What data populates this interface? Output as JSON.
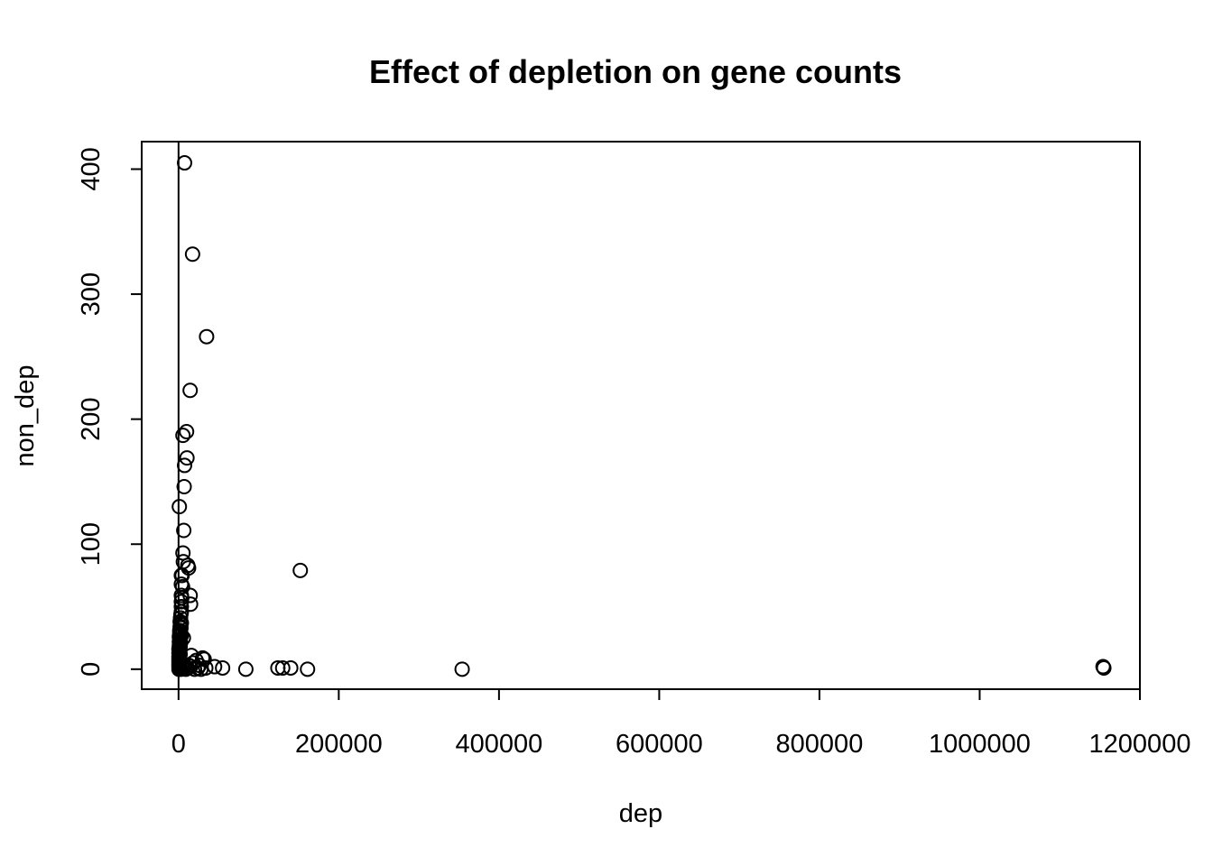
{
  "chart_data": {
    "type": "scatter",
    "title": "Effect of depletion on gene counts",
    "xlabel": "dep",
    "ylabel": "non_dep",
    "xlim": [
      -46000,
      1200000
    ],
    "ylim": [
      -16,
      422
    ],
    "x_ticks": [
      0,
      200000,
      400000,
      600000,
      800000,
      1000000,
      1200000
    ],
    "x_tick_labels": [
      "0",
      "200000",
      "400000",
      "600000",
      "800000",
      "1000000",
      "1200000"
    ],
    "y_ticks": [
      0,
      100,
      200,
      300,
      400
    ],
    "y_tick_labels": [
      "0",
      "100",
      "200",
      "300",
      "400"
    ],
    "reference_line": {
      "orientation": "vertical",
      "x": 0
    },
    "grid": false,
    "legend": "none",
    "points": [
      [
        7500,
        405
      ],
      [
        17500,
        332
      ],
      [
        35000,
        266
      ],
      [
        14500,
        223
      ],
      [
        10000,
        190
      ],
      [
        5500,
        187
      ],
      [
        10500,
        169
      ],
      [
        7500,
        163
      ],
      [
        7000,
        146
      ],
      [
        1000,
        130
      ],
      [
        6500,
        111
      ],
      [
        5500,
        93
      ],
      [
        6000,
        86
      ],
      [
        11500,
        83
      ],
      [
        12500,
        81
      ],
      [
        4500,
        75
      ],
      [
        3500,
        75
      ],
      [
        3500,
        68
      ],
      [
        5000,
        66
      ],
      [
        14500,
        59
      ],
      [
        3500,
        59
      ],
      [
        4000,
        57
      ],
      [
        3500,
        54
      ],
      [
        15000,
        52
      ],
      [
        3500,
        50
      ],
      [
        3500,
        46
      ],
      [
        3000,
        44
      ],
      [
        2500,
        41
      ],
      [
        2000,
        38
      ],
      [
        3500,
        37
      ],
      [
        2500,
        36
      ],
      [
        2000,
        34
      ],
      [
        3000,
        33
      ],
      [
        1500,
        31
      ],
      [
        2500,
        30
      ],
      [
        1500,
        29
      ],
      [
        2000,
        28
      ],
      [
        3500,
        27
      ],
      [
        1000,
        26
      ],
      [
        6000,
        25
      ],
      [
        1500,
        24
      ],
      [
        2000,
        23
      ],
      [
        1000,
        22
      ],
      [
        2500,
        21
      ],
      [
        1500,
        20
      ],
      [
        1000,
        19
      ],
      [
        2000,
        18
      ],
      [
        1000,
        17
      ],
      [
        500,
        16
      ],
      [
        1500,
        15
      ],
      [
        1000,
        14
      ],
      [
        500,
        13
      ],
      [
        2000,
        12
      ],
      [
        1000,
        11
      ],
      [
        500,
        10
      ],
      [
        1500,
        9
      ],
      [
        500,
        8
      ],
      [
        1000,
        7
      ],
      [
        500,
        6
      ],
      [
        1500,
        5
      ],
      [
        500,
        4
      ],
      [
        1000,
        3
      ],
      [
        500,
        2
      ],
      [
        1500,
        1
      ],
      [
        500,
        0
      ],
      [
        3000,
        0
      ],
      [
        5000,
        1
      ],
      [
        7000,
        2
      ],
      [
        9000,
        0
      ],
      [
        11000,
        1
      ],
      [
        13000,
        3
      ],
      [
        16000,
        11
      ],
      [
        15000,
        2
      ],
      [
        18000,
        5
      ],
      [
        20000,
        0
      ],
      [
        22000,
        7
      ],
      [
        24000,
        1
      ],
      [
        26000,
        3
      ],
      [
        30000,
        9
      ],
      [
        32000,
        8
      ],
      [
        28000,
        0
      ],
      [
        34000,
        1
      ],
      [
        45000,
        2
      ],
      [
        55000,
        1
      ],
      [
        84000,
        0
      ],
      [
        124000,
        1
      ],
      [
        130000,
        1
      ],
      [
        140000,
        1
      ],
      [
        161000,
        0
      ],
      [
        152000,
        79
      ],
      [
        354000,
        0
      ],
      [
        1154000,
        2
      ],
      [
        1155000,
        1
      ]
    ]
  }
}
